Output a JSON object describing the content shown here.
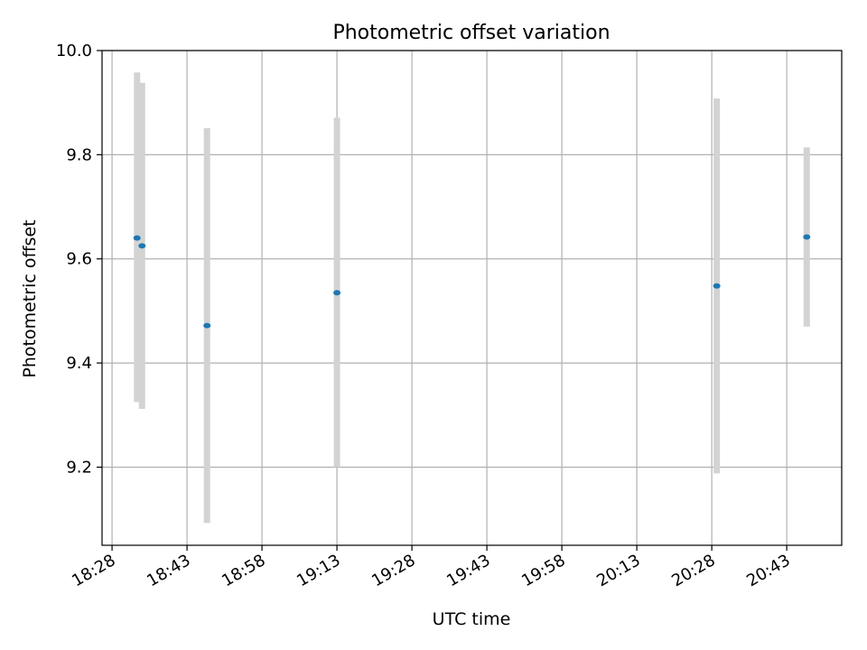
{
  "chart_data": {
    "type": "scatter",
    "title": "Photometric offset variation",
    "xlabel": "UTC time",
    "ylabel": "Photometric offset",
    "x_ticks": [
      "18:28",
      "18:43",
      "18:58",
      "19:13",
      "19:28",
      "19:43",
      "19:58",
      "20:13",
      "20:28",
      "20:43"
    ],
    "y_ticks": [
      "9.2",
      "9.4",
      "9.6",
      "9.8",
      "10.0"
    ],
    "xlim": [
      "18:26",
      "20:54"
    ],
    "ylim": [
      9.05,
      10.0
    ],
    "grid": true,
    "points": [
      {
        "x": "18:33",
        "y": 9.64,
        "err_low": 9.325,
        "err_high": 9.958
      },
      {
        "x": "18:34",
        "y": 9.625,
        "err_low": 9.312,
        "err_high": 9.938
      },
      {
        "x": "18:47",
        "y": 9.472,
        "err_low": 9.093,
        "err_high": 9.851
      },
      {
        "x": "19:13",
        "y": 9.535,
        "err_low": 9.2,
        "err_high": 9.871
      },
      {
        "x": "20:29",
        "y": 9.548,
        "err_low": 9.188,
        "err_high": 9.908
      },
      {
        "x": "20:47",
        "y": 9.642,
        "err_low": 9.47,
        "err_high": 9.814
      }
    ],
    "marker_color": "#1f77b4",
    "errorbar_color": "#d3d3d3",
    "grid_color": "#b0b0b0"
  }
}
